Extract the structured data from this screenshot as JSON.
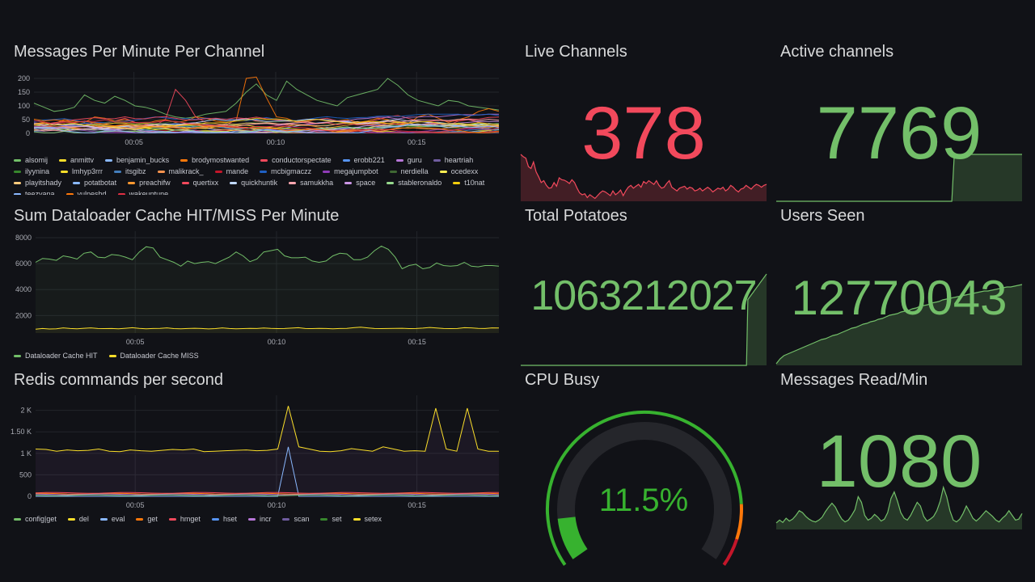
{
  "colors": {
    "green": "#73bf69",
    "red": "#f2495c",
    "yellow": "#fade2a",
    "purple": "#b877d9",
    "gridline": "#23252b"
  },
  "panels": {
    "messages": {
      "title": "Messages Per Minute Per Channel",
      "yticks": [
        "200",
        "150",
        "100",
        "50",
        "0"
      ],
      "xticks": [
        "00:05",
        "00:10",
        "00:15"
      ],
      "legend": [
        {
          "label": "alsomij",
          "color": "#73bf69"
        },
        {
          "label": "anmittv",
          "color": "#fade2a"
        },
        {
          "label": "benjamin_bucks",
          "color": "#8ab8ff"
        },
        {
          "label": "brodymostwanted",
          "color": "#ff780a"
        },
        {
          "label": "conductorspectate",
          "color": "#f2495c"
        },
        {
          "label": "erobb221",
          "color": "#5794f2"
        },
        {
          "label": "guru",
          "color": "#b877d9"
        },
        {
          "label": "heartriah",
          "color": "#705da0"
        },
        {
          "label": "ilyynina",
          "color": "#37872d"
        },
        {
          "label": "lmhyp3rrr",
          "color": "#fade2a"
        },
        {
          "label": "itsgibz",
          "color": "#447ebc"
        },
        {
          "label": "malikrack_",
          "color": "#f9934e"
        },
        {
          "label": "mande",
          "color": "#c4162a"
        },
        {
          "label": "mcbigmaczz",
          "color": "#1f60c4"
        },
        {
          "label": "megajumpbot",
          "color": "#8f3bb8"
        },
        {
          "label": "nerdiella",
          "color": "#3f6833"
        },
        {
          "label": "ocedexx",
          "color": "#ffee52"
        },
        {
          "label": "playitshady",
          "color": "#ffcb7d"
        },
        {
          "label": "potatbotat",
          "color": "#8ab8ff"
        },
        {
          "label": "preachifw",
          "color": "#ff9830"
        },
        {
          "label": "quertixx",
          "color": "#f2495c"
        },
        {
          "label": "quickhuntik",
          "color": "#c0d8ff"
        },
        {
          "label": "samukkha",
          "color": "#ffa6b0"
        },
        {
          "label": "space",
          "color": "#ca95e5"
        },
        {
          "label": "stableronaldo",
          "color": "#96d98d"
        },
        {
          "label": "t10nat",
          "color": "#f2cc0c"
        },
        {
          "label": "teezyana",
          "color": "#8ab8ff"
        },
        {
          "label": "vulpeshd",
          "color": "#ff780a"
        },
        {
          "label": "wakeuptune",
          "color": "#e02f44"
        }
      ]
    },
    "live": {
      "title": "Live Channels",
      "value": "378",
      "color": "#f2495c",
      "spark": [
        100,
        95,
        92,
        74,
        70,
        84,
        63,
        52,
        40,
        44,
        34,
        28,
        29,
        40,
        32,
        50,
        46,
        45,
        42,
        38,
        46,
        40,
        28,
        18,
        14,
        16,
        8,
        14,
        10,
        6,
        12,
        18,
        22,
        20,
        16,
        12,
        22,
        14,
        18,
        24,
        12,
        22,
        30,
        34,
        28,
        32,
        36,
        30,
        42,
        38,
        44,
        40,
        36,
        44,
        34,
        28,
        30,
        38,
        44,
        30,
        26,
        22,
        28,
        30,
        32,
        26,
        30,
        28,
        22,
        24,
        28,
        22,
        26,
        30,
        26,
        20,
        24,
        28,
        26,
        30,
        22,
        26,
        34,
        30,
        24,
        20,
        26,
        28,
        34,
        30,
        26,
        32,
        36,
        34,
        30,
        34,
        36
      ]
    },
    "active": {
      "title": "Active channels",
      "value": "7769",
      "color": "#73bf69",
      "spark": [
        0,
        0,
        0,
        0,
        0,
        0,
        0,
        0,
        0,
        0,
        0,
        0,
        0,
        0,
        0,
        0,
        0,
        0,
        0,
        0,
        0,
        0,
        0,
        0,
        0,
        0,
        0,
        0,
        0,
        0,
        0,
        0,
        0,
        0,
        0,
        0,
        0,
        0,
        0,
        0,
        0,
        0,
        0,
        0,
        0,
        0,
        0,
        0,
        0,
        0,
        0,
        0,
        0,
        0,
        0,
        0,
        0,
        0,
        0,
        0,
        0,
        0,
        0,
        0,
        0,
        0,
        0,
        0,
        0,
        0,
        0,
        100,
        100,
        100,
        100,
        100,
        100,
        100,
        100,
        100,
        100,
        100,
        100,
        100,
        100,
        100,
        100,
        100,
        100,
        100,
        100,
        100,
        100,
        100,
        100,
        100,
        100,
        100,
        100
      ]
    },
    "dataloader": {
      "title": "Sum Dataloader Cache HIT/MISS Per Minute",
      "yticks": [
        "8000",
        "6000",
        "4000",
        "2000"
      ],
      "xticks": [
        "00:05",
        "00:10",
        "00:15"
      ],
      "legend": [
        {
          "label": "Dataloader Cache HIT",
          "color": "#73bf69"
        },
        {
          "label": "Dataloader Cache MISS",
          "color": "#fade2a"
        }
      ],
      "hit": [
        6100,
        6400,
        6350,
        6250,
        6600,
        6500,
        6350,
        6800,
        6900,
        6500,
        6450,
        6700,
        6650,
        6500,
        6300,
        6900,
        7300,
        7200,
        6500,
        6300,
        6100,
        5800,
        6200,
        6000,
        6100,
        6150,
        6000,
        6250,
        6500,
        6900,
        6600,
        6150,
        6350,
        6900,
        7000,
        7100,
        6600,
        6450,
        6450,
        6500,
        6200,
        6100,
        6200,
        6600,
        6800,
        6750,
        6300,
        6300,
        6500,
        7000,
        7350,
        7100,
        6500,
        5600,
        5850,
        5950,
        5600,
        5700,
        6050,
        5850,
        5800,
        5850,
        6100,
        5800,
        5750,
        5850,
        5850,
        5800
      ],
      "miss": [
        950,
        1000,
        960,
        980,
        1050,
        1000,
        980,
        1020,
        1050,
        1000,
        990,
        1000,
        980,
        1020,
        1060,
        1010,
        980,
        1000,
        1010,
        1050,
        990,
        980,
        1000,
        1020,
        1000,
        970,
        990,
        1050,
        1000,
        980,
        990,
        1010,
        1000,
        1040,
        1010,
        990,
        1000,
        1030,
        1060,
        1000,
        990,
        1010,
        1000,
        980,
        1000,
        1010,
        1060,
        1100,
        1050,
        1000,
        990,
        1000,
        1010,
        1020,
        990,
        1000,
        1030,
        1080,
        1040,
        1000,
        990,
        1000,
        1060,
        1050,
        1010,
        1000,
        1050,
        1040
      ]
    },
    "potatoes": {
      "title": "Total Potatoes",
      "value": "1063212027",
      "color": "#73bf69",
      "spark": [
        0,
        0,
        0,
        0,
        0,
        0,
        0,
        0,
        0,
        0,
        0,
        0,
        0,
        0,
        0,
        0,
        0,
        0,
        0,
        0,
        0,
        0,
        0,
        0,
        0,
        0,
        0,
        0,
        0,
        0,
        0,
        0,
        0,
        0,
        0,
        0,
        0,
        0,
        0,
        0,
        0,
        0,
        0,
        0,
        0,
        0,
        0,
        0,
        0,
        0,
        0,
        0,
        0,
        0,
        0,
        0,
        0,
        0,
        0,
        0,
        0,
        0,
        0,
        0,
        0,
        0,
        0,
        0,
        0,
        0,
        0,
        0,
        0,
        0,
        0,
        0,
        0,
        0,
        0,
        0,
        0,
        0,
        0,
        0,
        0,
        0,
        0,
        0,
        0,
        0,
        0,
        0,
        0,
        0,
        0,
        0,
        0,
        0,
        0,
        0,
        0,
        0,
        0,
        0,
        0,
        0,
        0,
        0,
        0,
        0,
        0,
        0,
        0,
        0,
        0,
        0,
        0,
        0,
        0,
        0,
        0,
        0,
        0,
        0,
        0,
        0,
        0,
        0,
        0,
        0,
        0,
        0,
        0,
        0,
        0,
        0,
        0,
        0,
        0,
        0,
        0,
        0,
        0,
        0,
        0,
        0,
        0,
        0,
        0,
        0,
        0,
        0,
        0,
        0,
        0,
        0,
        0,
        0,
        0,
        0,
        0,
        0,
        0,
        0,
        0,
        0,
        0,
        0,
        0,
        0,
        72,
        74,
        76,
        78,
        80,
        82,
        84,
        86,
        88,
        90,
        92,
        94,
        96,
        98,
        100
      ]
    },
    "users": {
      "title": "Users Seen",
      "value": "12770043",
      "color": "#73bf69",
      "spark": [
        2,
        8,
        12,
        14,
        16,
        18,
        20,
        22,
        24,
        26,
        28,
        30,
        32,
        33,
        35,
        37,
        38,
        40,
        42,
        44,
        46,
        47,
        49,
        51,
        52,
        54,
        55,
        57,
        58,
        60,
        62,
        63,
        64,
        66,
        67,
        68,
        70,
        71,
        73,
        74,
        75,
        77,
        78,
        79,
        81,
        82,
        83,
        84,
        85,
        86,
        87,
        88,
        89,
        90,
        91,
        92,
        92,
        93,
        94,
        95,
        96,
        97,
        97,
        98,
        99,
        100
      ]
    },
    "redis": {
      "title": "Redis commands per second",
      "yticks": [
        "2 K",
        "1.50 K",
        "1 K",
        "500",
        "0"
      ],
      "xticks": [
        "00:05",
        "00:10",
        "00:15"
      ],
      "legend": [
        {
          "label": "config|get",
          "color": "#73bf69"
        },
        {
          "label": "del",
          "color": "#fade2a"
        },
        {
          "label": "eval",
          "color": "#8ab8ff"
        },
        {
          "label": "get",
          "color": "#ff780a"
        },
        {
          "label": "hmget",
          "color": "#f2495c"
        },
        {
          "label": "hset",
          "color": "#5794f2"
        },
        {
          "label": "incr",
          "color": "#b877d9"
        },
        {
          "label": "scan",
          "color": "#705da0"
        },
        {
          "label": "set",
          "color": "#37872d"
        },
        {
          "label": "setex",
          "color": "#fade2a"
        }
      ],
      "main": [
        1100,
        1090,
        1050,
        1080,
        1060,
        1070,
        1100,
        1050,
        1040,
        1080,
        1060,
        1050,
        1070,
        1090,
        1080,
        1100,
        1040,
        1050,
        1060,
        1070,
        1080,
        1060,
        1070,
        1100,
        2100,
        1150,
        1100,
        1050,
        1040,
        1060,
        1110,
        1080,
        1050,
        1150,
        1100,
        1050,
        1060,
        1050,
        2050,
        1100,
        1050,
        2050,
        1100,
        1050,
        1050
      ],
      "spike": [
        0,
        0,
        0,
        0,
        0,
        0,
        0,
        0,
        0,
        0,
        0,
        0,
        0,
        0,
        0,
        0,
        0,
        0,
        0,
        0,
        0,
        0,
        0,
        0,
        1150,
        0,
        0,
        0,
        0,
        0,
        0,
        0,
        0,
        0,
        0,
        0,
        0,
        0,
        0,
        0,
        0,
        0,
        0,
        0,
        0
      ]
    },
    "cpu": {
      "title": "CPU Busy",
      "value": "11.5%",
      "percent": 11.5
    },
    "msgread": {
      "title": "Messages Read/Min",
      "value": "1080",
      "color": "#73bf69",
      "spark": [
        14,
        20,
        15,
        24,
        18,
        22,
        30,
        40,
        36,
        28,
        22,
        18,
        16,
        20,
        26,
        38,
        48,
        56,
        48,
        34,
        22,
        16,
        20,
        30,
        42,
        70,
        58,
        30,
        20,
        24,
        32,
        26,
        18,
        22,
        36,
        66,
        80,
        60,
        36,
        24,
        20,
        30,
        44,
        58,
        50,
        28,
        18,
        22,
        28,
        40,
        60,
        90,
        70,
        40,
        20,
        16,
        22,
        34,
        50,
        38,
        24,
        18,
        24,
        32,
        40,
        34,
        28,
        20,
        16,
        24,
        30,
        40,
        30,
        20,
        22,
        34
      ]
    }
  }
}
